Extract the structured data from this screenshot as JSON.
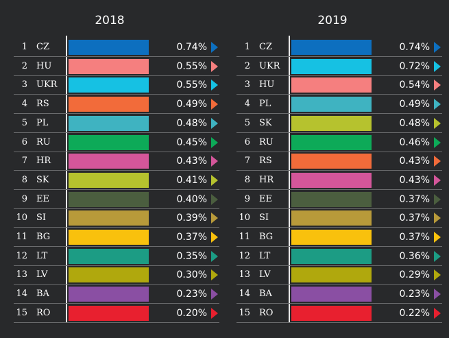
{
  "chart_data": [
    {
      "type": "bar",
      "title": "2018",
      "ranks": [
        "1",
        "2",
        "3",
        "4",
        "5",
        "6",
        "7",
        "8",
        "9",
        "10",
        "11",
        "12",
        "13",
        "14",
        "15"
      ],
      "categories": [
        "CZ",
        "HU",
        "UKR",
        "RS",
        "PL",
        "RU",
        "HR",
        "SK",
        "EE",
        "SI",
        "BG",
        "LT",
        "LV",
        "BA",
        "RO"
      ],
      "values": [
        0.74,
        0.55,
        0.55,
        0.49,
        0.48,
        0.45,
        0.43,
        0.41,
        0.4,
        0.39,
        0.37,
        0.35,
        0.3,
        0.23,
        0.2
      ],
      "labels": [
        "0.74%",
        "0.55%",
        "0.55%",
        "0.49%",
        "0.48%",
        "0.45%",
        "0.43%",
        "0.41%",
        "0.40%",
        "0.39%",
        "0.37%",
        "0.35%",
        "0.30%",
        "0.23%",
        "0.20%"
      ],
      "colors": [
        "#0d6fbf",
        "#f57f7f",
        "#16c1e3",
        "#f26b3a",
        "#3fb3c1",
        "#0daa58",
        "#d4569a",
        "#b6c22e",
        "#4b5e3f",
        "#b89a3a",
        "#f9c10d",
        "#1c9c84",
        "#b0a80d",
        "#8a4fa3",
        "#e8202f"
      ]
    },
    {
      "type": "bar",
      "title": "2019",
      "ranks": [
        "1",
        "2",
        "3",
        "4",
        "5",
        "6",
        "7",
        "8",
        "9",
        "10",
        "11",
        "12",
        "13",
        "14",
        "15"
      ],
      "categories": [
        "CZ",
        "UKR",
        "HU",
        "PL",
        "SK",
        "RU",
        "RS",
        "HR",
        "EE",
        "SI",
        "BG",
        "LT",
        "LV",
        "BA",
        "RO"
      ],
      "values": [
        0.74,
        0.72,
        0.54,
        0.49,
        0.48,
        0.46,
        0.43,
        0.43,
        0.37,
        0.37,
        0.37,
        0.36,
        0.29,
        0.23,
        0.22
      ],
      "labels": [
        "0.74%",
        "0.72%",
        "0.54%",
        "0.49%",
        "0.48%",
        "0.46%",
        "0.43%",
        "0.43%",
        "0.37%",
        "0.37%",
        "0.37%",
        "0.36%",
        "0.29%",
        "0.23%",
        "0.22%"
      ],
      "colors": [
        "#0d6fbf",
        "#16c1e3",
        "#f57f7f",
        "#3fb3c1",
        "#b6c22e",
        "#0daa58",
        "#f26b3a",
        "#d4569a",
        "#4b5e3f",
        "#b89a3a",
        "#f9c10d",
        "#1c9c84",
        "#b0a80d",
        "#8a4fa3",
        "#e8202f"
      ]
    }
  ]
}
